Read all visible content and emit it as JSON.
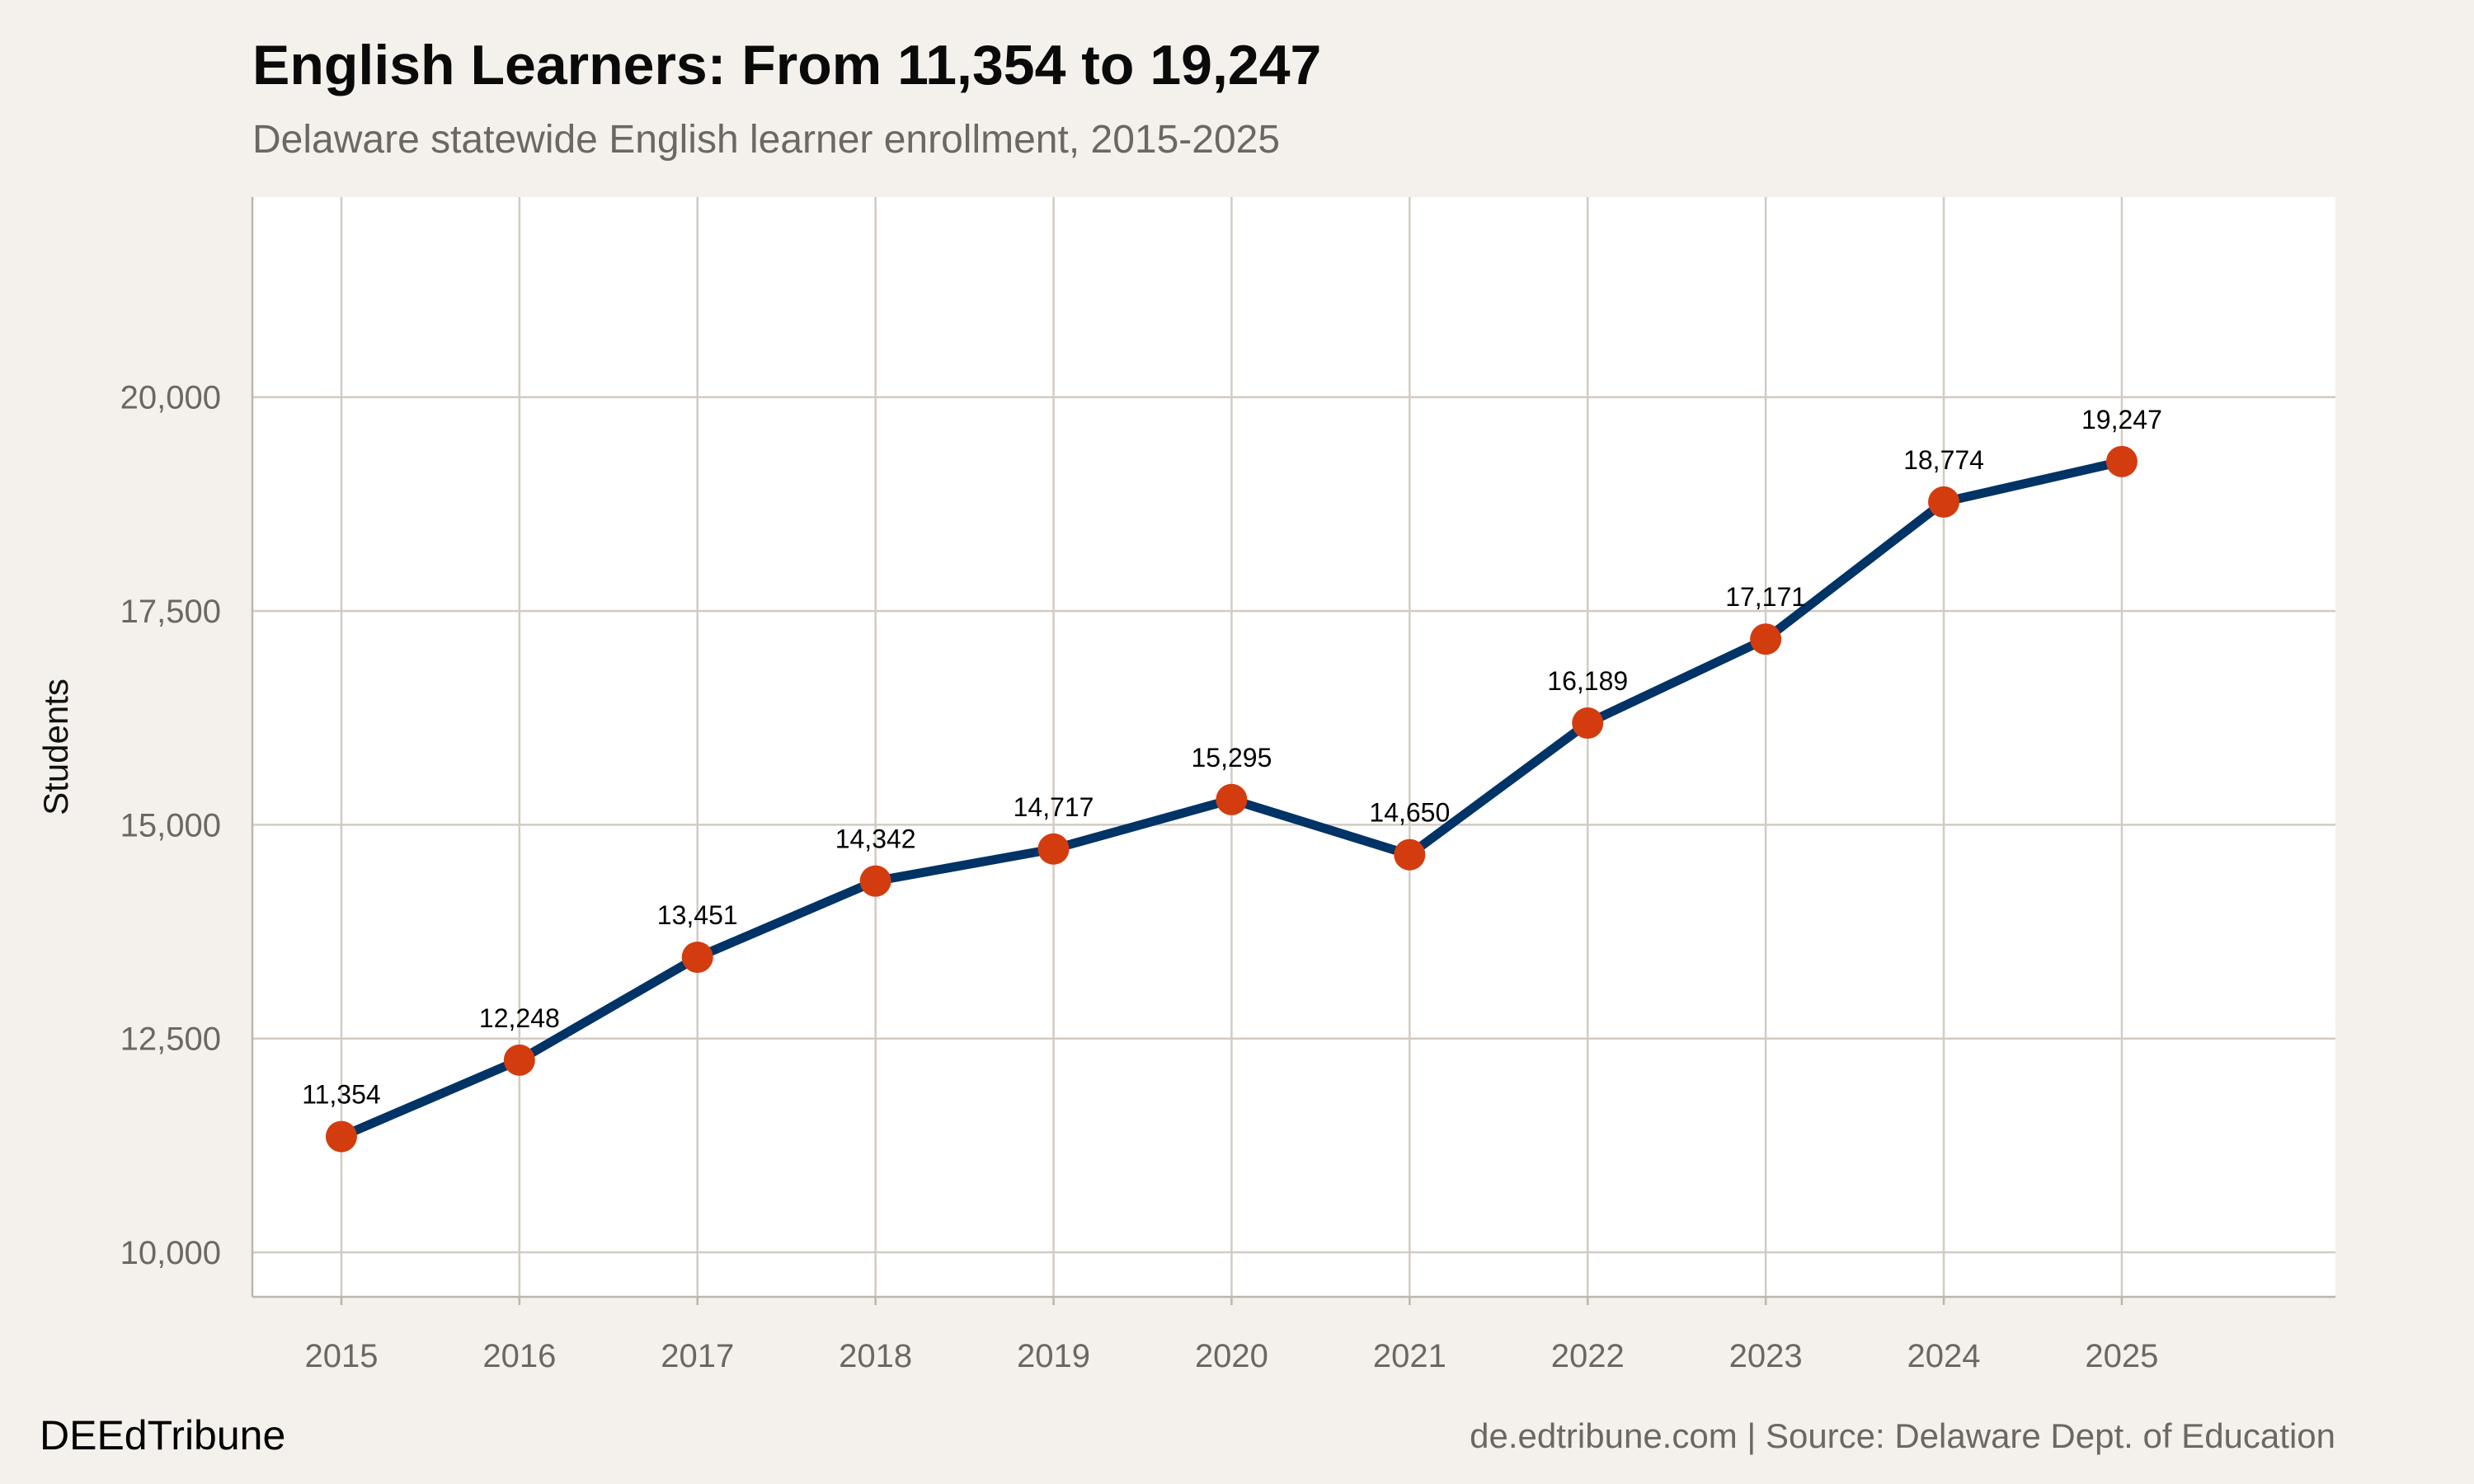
{
  "chart_data": {
    "type": "line",
    "title": "English Learners: From 11,354 to 19,247",
    "subtitle": "Delaware statewide English learner enrollment, 2015-2025",
    "xlabel": "",
    "ylabel": "Students",
    "x": [
      2015,
      2016,
      2017,
      2018,
      2019,
      2020,
      2021,
      2022,
      2023,
      2024,
      2025
    ],
    "values": [
      11354,
      12248,
      13451,
      14342,
      14717,
      15295,
      14650,
      16189,
      17171,
      18774,
      19247
    ],
    "data_labels": [
      "11,354",
      "12,248",
      "13,451",
      "14,342",
      "14,717",
      "15,295",
      "14,650",
      "16,189",
      "17,171",
      "18,774",
      "19,247"
    ],
    "xticks": [
      "2015",
      "2016",
      "2017",
      "2018",
      "2019",
      "2020",
      "2021",
      "2022",
      "2023",
      "2024",
      "2025"
    ],
    "yticks": [
      10000,
      12500,
      15000,
      17500,
      20000
    ],
    "ytick_labels": [
      "10,000",
      "12,500",
      "15,000",
      "17,500",
      "20,000"
    ],
    "xlim": [
      2014.5,
      2026.2
    ],
    "ylim": [
      9480,
      22340
    ],
    "grid": true,
    "colors": {
      "line": "#003366",
      "point": "#D33C0E",
      "grid": "#D2CBC2",
      "background": "#F4F1EC",
      "panel": "#FFFFFF"
    }
  },
  "footer": {
    "brand": "DEEdTribune",
    "caption": "de.edtribune.com | Source: Delaware Dept. of Education"
  }
}
